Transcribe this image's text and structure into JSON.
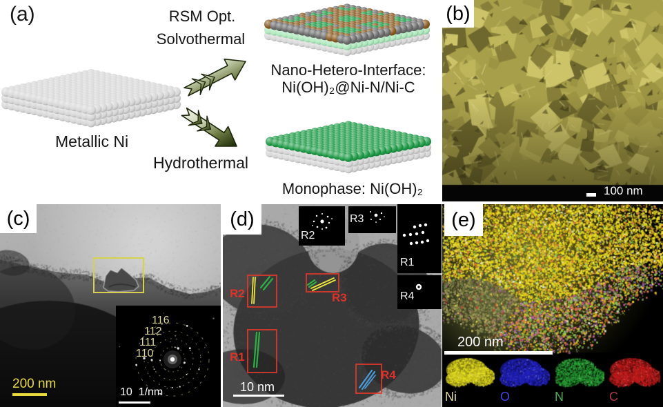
{
  "figure": {
    "panels": {
      "a": {
        "label": "(a)",
        "route_top_line1": "RSM Opt.",
        "route_top_line2": "Solvothermal",
        "precursor_label": "Metallic Ni",
        "route_bottom_label": "Hydrothermal",
        "product_top_line1": "Nano-Hetero-Interface:",
        "product_top_line2": "Ni(OH)₂@Ni-N/Ni-C",
        "product_bottom_label": "Monophase: Ni(OH)₂"
      },
      "b": {
        "label": "(b)",
        "scale_bar_label": "100 nm"
      },
      "c": {
        "label": "(c)",
        "scale_bar_label": "200 nm",
        "saed": {
          "ring_labels": [
            "116",
            "112",
            "111",
            "110"
          ],
          "scale_label": "10  1/nm"
        }
      },
      "d": {
        "label": "(d)",
        "scale_bar_label": "10 nm",
        "fft_insets": {
          "r2": "R2",
          "r3": "R3",
          "r1": "R1",
          "r4": "R4"
        },
        "roi_boxes": {
          "r2": "R2",
          "r3": "R3",
          "r1": "R1",
          "r4": "R4"
        }
      },
      "e": {
        "label": "(e)",
        "scale_bar_label": "200 nm",
        "element_maps": [
          {
            "symbol": "Ni",
            "map_color": "#e8e020",
            "label_color": "#ddd89c"
          },
          {
            "symbol": "O",
            "map_color": "#2424cc",
            "label_color": "#4343e0"
          },
          {
            "symbol": "N",
            "map_color": "#27a335",
            "label_color": "#46b050"
          },
          {
            "symbol": "C",
            "map_color": "#cc1d1d",
            "label_color": "#a33a48"
          }
        ]
      }
    },
    "colors": {
      "sphere_gray": "#d6d6d6",
      "sphere_mint": "#aee9bd",
      "sphere_green": "#1f9a47",
      "sphere_brown": "#8a5a20",
      "sphere_dark": "#6b6b6b",
      "arrow_outline": "#1c260a",
      "roi_red": "#e03228",
      "marker_yellow": "#eee83c",
      "marker_green": "#2cb244",
      "marker_blue": "#4b9bd8",
      "saed_label": "#ddd89a",
      "scalebar_yellow": "#e8d93c",
      "sem_olive": "#a89f4a"
    }
  }
}
